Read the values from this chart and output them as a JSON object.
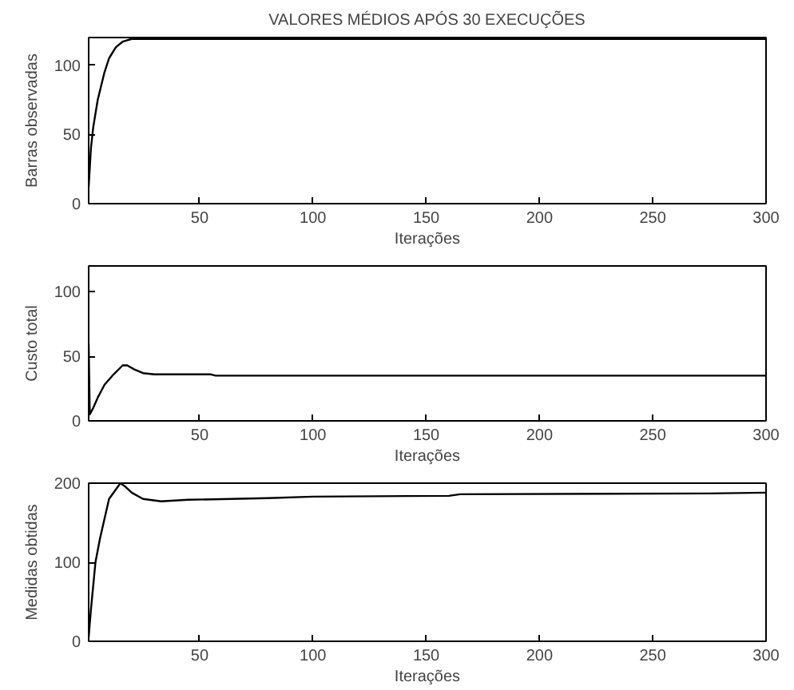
{
  "chart_data": [
    {
      "type": "line",
      "title": "VALORES MÉDIOS APÓS 30 EXECUÇÕES",
      "xlabel": "Iterações",
      "ylabel": "Barras observadas",
      "xlim": [
        1,
        300
      ],
      "ylim": [
        0,
        120
      ],
      "xticks": [
        50,
        100,
        150,
        200,
        250,
        300
      ],
      "yticks": [
        0,
        50,
        100
      ],
      "grid": false,
      "series": [
        {
          "color": "#000000",
          "x": [
            1,
            2,
            3,
            5,
            8,
            10,
            13,
            16,
            20,
            300
          ],
          "values": [
            12,
            40,
            55,
            75,
            95,
            105,
            113,
            117,
            119,
            119
          ]
        }
      ]
    },
    {
      "type": "line",
      "xlabel": "Iterações",
      "ylabel": "Custo total",
      "xlim": [
        1,
        300
      ],
      "ylim": [
        0,
        120
      ],
      "xticks": [
        50,
        100,
        150,
        200,
        250,
        300
      ],
      "yticks": [
        0,
        50,
        100
      ],
      "grid": false,
      "series": [
        {
          "color": "#000000",
          "x": [
            1,
            1.5,
            3,
            5,
            8,
            12,
            16,
            18,
            21,
            25,
            30,
            55,
            57,
            300
          ],
          "values": [
            60,
            5,
            10,
            18,
            28,
            36,
            43,
            43,
            40,
            37,
            36,
            36,
            35,
            35
          ]
        }
      ]
    },
    {
      "type": "line",
      "xlabel": "Iterações",
      "ylabel": "Medidas obtidas",
      "xlim": [
        1,
        300
      ],
      "ylim": [
        0,
        200
      ],
      "xticks": [
        50,
        100,
        150,
        200,
        250,
        300
      ],
      "yticks": [
        0,
        100,
        200
      ],
      "grid": false,
      "series": [
        {
          "color": "#000000",
          "x": [
            1,
            2,
            4,
            6,
            10,
            15,
            17,
            20,
            25,
            33,
            45,
            80,
            100,
            160,
            165,
            275,
            300
          ],
          "values": [
            5,
            40,
            100,
            130,
            180,
            200,
            196,
            188,
            180,
            177,
            179,
            181,
            183,
            184,
            186,
            187,
            188
          ]
        }
      ]
    }
  ]
}
